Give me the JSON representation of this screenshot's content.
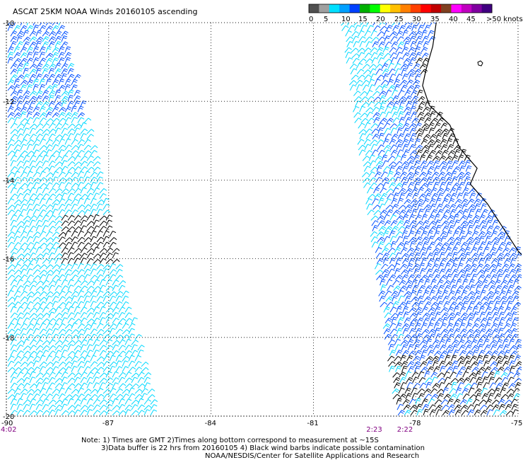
{
  "title": "ASCAT 25KM NOAA Winds 20160105 ascending",
  "legend": {
    "labels": [
      "0",
      "5",
      "10",
      "15",
      "20",
      "25",
      "30",
      "35",
      "40",
      "45",
      ">50 knots"
    ],
    "colors": [
      "#505050",
      "#a0a0a0",
      "#00e0ff",
      "#00a0ff",
      "#0040ff",
      "#00b000",
      "#00ff00",
      "#ffff00",
      "#ffc000",
      "#ff8000",
      "#ff4000",
      "#ff0000",
      "#c00000",
      "#804020",
      "#ff00ff",
      "#c000c0",
      "#8000a0",
      "#400080"
    ]
  },
  "axes": {
    "lat_labels": [
      "-10",
      "-12",
      "-14",
      "-16",
      "-18",
      "-20"
    ],
    "lon_labels": [
      "-90",
      "-87",
      "-84",
      "-81",
      "-78",
      "-75"
    ],
    "lat_range": [
      -20,
      -10
    ],
    "lon_range": [
      -90,
      -75
    ],
    "grid": true
  },
  "times": [
    {
      "label": "4:02",
      "lon": -90,
      "color": "#800080"
    },
    {
      "label": "2:23",
      "lon": -79.2,
      "color": "#800080"
    },
    {
      "label": "2:22",
      "lon": -78.3,
      "color": "#800080"
    }
  ],
  "notes": [
    "Note: 1) Times are GMT 2)Times along bottom correspond to measurement at ~15S",
    "3)Data buffer is 22 hrs from 20160105 4) Black wind barbs indicate possible contamination",
    "NOAA/NESDIS/Center for Satellite Applications and Research"
  ],
  "colors": {
    "grid": "#000000",
    "coast": "#000000",
    "contaminated": "#000000",
    "wind_5_10": "#00d8ff",
    "wind_10_15": "#0050ff",
    "time_labels": "#800080"
  },
  "map_data": {
    "swaths": [
      {
        "name": "west",
        "lon_min": -90,
        "lon_max_top": -89,
        "lon_max_bottom": -86.3,
        "lat_min": -20,
        "lat_max": -10
      },
      {
        "name": "east",
        "lon_min_top": -80.2,
        "lon_min_bottom": -78.6,
        "lon_max": -75,
        "lat_min": -20,
        "lat_max": -10
      }
    ],
    "coastline": [
      [
        -77.4,
        -10
      ],
      [
        -77.5,
        -10.6
      ],
      [
        -77.7,
        -11.2
      ],
      [
        -77.8,
        -11.6
      ],
      [
        -77.6,
        -12.1
      ],
      [
        -77.0,
        -12.6
      ],
      [
        -76.7,
        -13.2
      ],
      [
        -76.2,
        -13.7
      ],
      [
        -76.4,
        -14.1
      ],
      [
        -75.9,
        -14.6
      ],
      [
        -75.6,
        -15.0
      ],
      [
        -75.3,
        -15.4
      ],
      [
        -75.0,
        -15.8
      ]
    ],
    "wind_clusters": [
      {
        "lon_range": [
          -90,
          -88.5
        ],
        "lat_range": [
          -12.5,
          -10
        ],
        "speed": "10-15"
      },
      {
        "lon_range": [
          -90,
          -86.5
        ],
        "lat_range": [
          -20,
          -12.5
        ],
        "speed": "5-10"
      },
      {
        "lon_range": [
          -88.5,
          -86.7
        ],
        "lat_range": [
          -16.2,
          -15.0
        ],
        "speed": "contaminated"
      },
      {
        "lon_range": [
          -80,
          -75
        ],
        "lat_range": [
          -20,
          -10
        ],
        "speed": "5-15"
      },
      {
        "lon_range": [
          -78,
          -76.5
        ],
        "lat_range": [
          -13.5,
          -11.0
        ],
        "speed": "contaminated"
      },
      {
        "lon_range": [
          -79,
          -75
        ],
        "lat_range": [
          -20,
          -18.5
        ],
        "speed": "contaminated"
      }
    ]
  }
}
